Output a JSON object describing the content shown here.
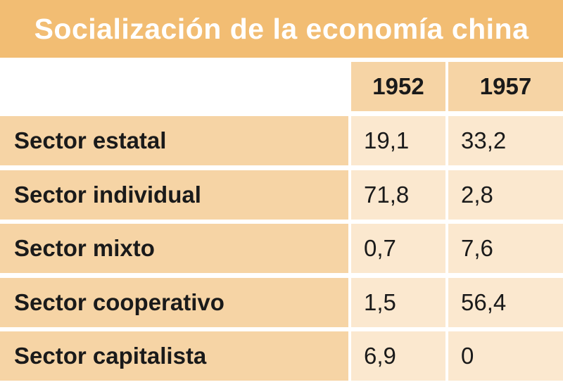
{
  "title": "Socialización de la economía china",
  "chart_data": {
    "type": "table",
    "title": "Socialización de la economía china",
    "columns": [
      "1952",
      "1957"
    ],
    "rows": [
      {
        "label": "Sector estatal",
        "values": [
          "19,1",
          "33,2"
        ]
      },
      {
        "label": "Sector individual",
        "values": [
          "71,8",
          "2,8"
        ]
      },
      {
        "label": "Sector mixto",
        "values": [
          "0,7",
          "7,6"
        ]
      },
      {
        "label": "Sector cooperativo",
        "values": [
          "1,5",
          "56,4"
        ]
      },
      {
        "label": "Sector capitalista",
        "values": [
          "6,9",
          "0"
        ]
      }
    ]
  },
  "colors": {
    "title_bar": "#f2bd73",
    "row_light": "#fbe8cf",
    "row_dark": "#f6d4a5",
    "text": "#1a1a1a"
  }
}
